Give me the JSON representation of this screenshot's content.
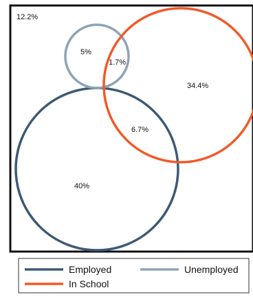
{
  "diagram": {
    "outside_label": "12.2%",
    "sets": [
      {
        "id": "employed",
        "name": "Employed",
        "color": "#3d5a73"
      },
      {
        "id": "unemployed",
        "name": "Unemployed",
        "color": "#8ea4b5"
      },
      {
        "id": "in_school",
        "name": "In School",
        "color": "#f05a28"
      }
    ],
    "regions": [
      {
        "id": "unemployed_only",
        "label": "5%"
      },
      {
        "id": "unemployed_and_in_school",
        "label": "1.7%"
      },
      {
        "id": "in_school_only",
        "label": "34.4%"
      },
      {
        "id": "employed_and_in_school",
        "label": "6.7%"
      },
      {
        "id": "employed_only",
        "label": "40%"
      }
    ]
  },
  "legend": {
    "employed": "Employed",
    "unemployed": "Unemployed",
    "in_school": "In School"
  }
}
